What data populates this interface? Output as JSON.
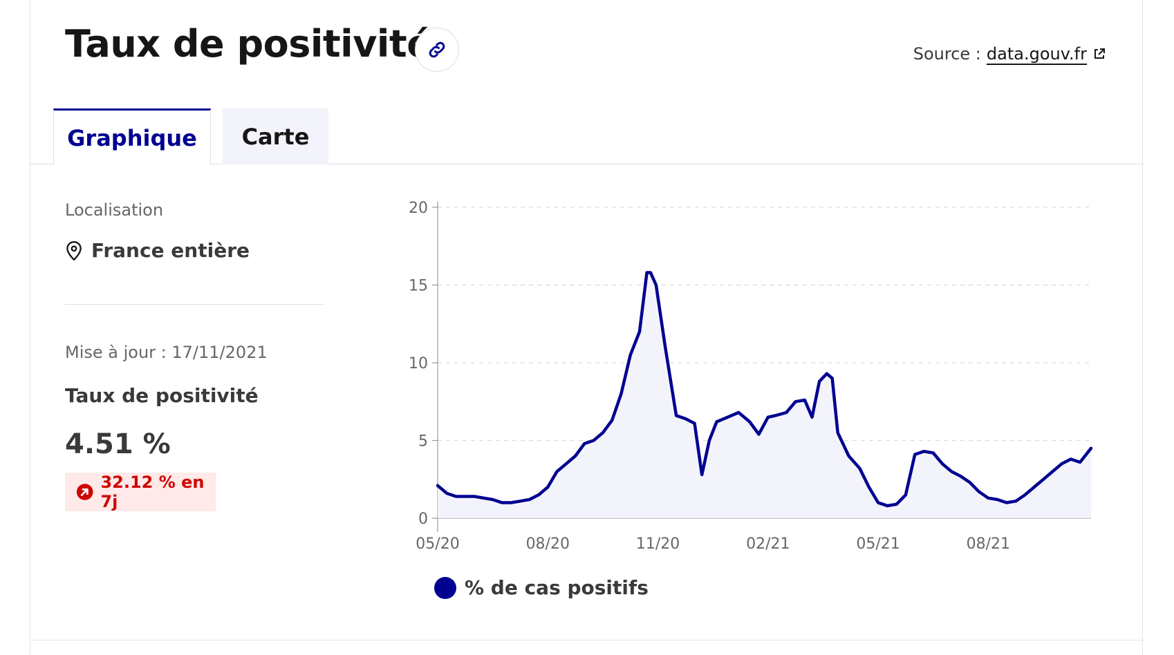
{
  "header": {
    "title": "Taux de positivité",
    "source_prefix": "Source :",
    "source_link": "data.gouv.fr"
  },
  "tabs": [
    {
      "label": "Graphique",
      "active": true
    },
    {
      "label": "Carte",
      "active": false
    }
  ],
  "sidebar": {
    "location_label": "Localisation",
    "location_value": "France entière",
    "update_text": "Mise à jour : 17/11/2021",
    "kpi_label": "Taux de positivité",
    "kpi_value": "4.51 %",
    "change_text": "32.12 % en 7j"
  },
  "colors": {
    "accent": "#000091",
    "alert": "#ce0500",
    "alert_bg": "#ffe9e9"
  },
  "chart_data": {
    "type": "area",
    "x_tick_labels": [
      "05/20",
      "08/20",
      "11/20",
      "02/21",
      "05/21",
      "08/21"
    ],
    "x_tick_months": [
      0,
      3,
      6,
      9,
      12,
      15
    ],
    "y_ticks": [
      0,
      5,
      10,
      15,
      20
    ],
    "ylim": [
      0,
      20
    ],
    "xlim_months": [
      0,
      17.8
    ],
    "grid": true,
    "legend_position": "bottom-left",
    "series": [
      {
        "name": "% de cas positifs",
        "x": [
          0.0,
          0.25,
          0.5,
          0.75,
          1.0,
          1.25,
          1.5,
          1.75,
          2.0,
          2.25,
          2.5,
          2.75,
          3.0,
          3.25,
          3.5,
          3.75,
          4.0,
          4.25,
          4.5,
          4.75,
          5.0,
          5.25,
          5.5,
          5.7,
          5.8,
          5.95,
          6.2,
          6.5,
          6.75,
          7.0,
          7.2,
          7.4,
          7.6,
          7.9,
          8.2,
          8.5,
          8.75,
          9.0,
          9.2,
          9.5,
          9.75,
          10.0,
          10.2,
          10.4,
          10.6,
          10.75,
          10.9,
          11.2,
          11.5,
          11.75,
          12.0,
          12.25,
          12.5,
          12.75,
          13.0,
          13.25,
          13.5,
          13.75,
          14.0,
          14.25,
          14.5,
          14.75,
          15.0,
          15.25,
          15.5,
          15.75,
          16.0,
          16.25,
          16.5,
          16.75,
          17.0,
          17.25,
          17.5,
          17.8
        ],
        "y": [
          2.1,
          1.6,
          1.4,
          1.4,
          1.4,
          1.3,
          1.2,
          1.0,
          1.0,
          1.1,
          1.2,
          1.5,
          2.0,
          3.0,
          3.5,
          4.0,
          4.8,
          5.0,
          5.5,
          6.3,
          8.0,
          10.5,
          12.0,
          15.8,
          15.8,
          15.0,
          11.0,
          6.6,
          6.4,
          6.1,
          2.8,
          5.0,
          6.2,
          6.5,
          6.8,
          6.2,
          5.4,
          6.5,
          6.6,
          6.8,
          7.5,
          7.6,
          6.5,
          8.8,
          9.3,
          9.0,
          5.5,
          4.0,
          3.2,
          2.0,
          1.0,
          0.8,
          0.9,
          1.5,
          4.1,
          4.3,
          4.2,
          3.5,
          3.0,
          2.7,
          2.3,
          1.7,
          1.3,
          1.2,
          1.0,
          1.1,
          1.5,
          2.0,
          2.5,
          3.0,
          3.5,
          3.8,
          3.6,
          4.5
        ]
      }
    ]
  }
}
